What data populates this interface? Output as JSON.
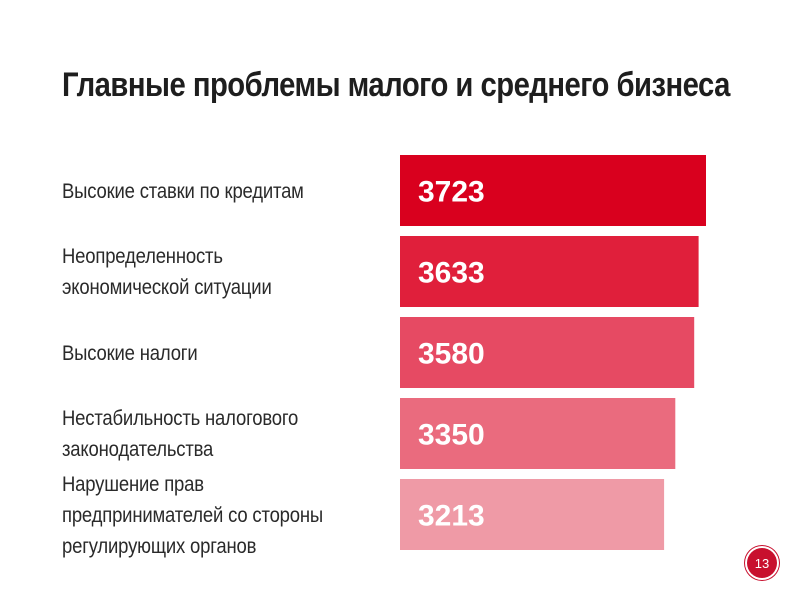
{
  "chart_data": {
    "type": "bar",
    "orientation": "horizontal",
    "title": "Главные проблемы малого и среднего бизнеса",
    "categories": [
      "Высокие ставки по кредитам",
      "Неопределенность экономической ситуации",
      "Высокие налоги",
      "Нестабильность налогового законодательства",
      "Нарушение прав предпринимателей со стороны регулирующих органов"
    ],
    "values": [
      3723,
      3633,
      3580,
      3350,
      3213
    ],
    "value_labels": [
      "3723",
      "3633",
      "3580",
      "3350",
      "3213"
    ],
    "bar_colors": [
      "#d9001e",
      "#e01f3b",
      "#e64a63",
      "#ea6b7e",
      "#ef9aa6"
    ],
    "grid": false,
    "legend": "none"
  },
  "page_number": "13",
  "accent_color": "#c8102e"
}
